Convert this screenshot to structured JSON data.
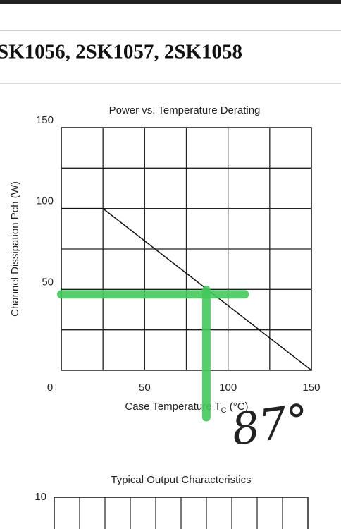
{
  "header": {
    "title": "SK1056, 2SK1057, 2SK1058"
  },
  "chart_data": [
    {
      "type": "line",
      "title": "Power vs. Temperature Derating",
      "x_label": {
        "text": "Case Temperature  T",
        "sub": "C",
        "unit": " (°C)"
      },
      "y_label": "Channel Dissipation  Pch (W)",
      "xlim": [
        0,
        150
      ],
      "xticks": [
        0,
        50,
        100,
        150
      ],
      "x_minor_ticks": [
        25,
        75,
        125
      ],
      "ylim": [
        0,
        150
      ],
      "yticks": [
        50,
        100,
        150
      ],
      "y_minor_ticks": [
        25,
        75,
        125
      ],
      "grid": true,
      "x": [
        0,
        25,
        150
      ],
      "series": [
        {
          "name": "Pch",
          "color": "#111111",
          "values": [
            100,
            100,
            0
          ]
        }
      ],
      "marker": {
        "x": 87,
        "y": 47,
        "x_end": 110,
        "y_end": -29,
        "label": "87°",
        "color": "#44c95c"
      }
    },
    {
      "type": "line",
      "title": "Typical Output Characteristics",
      "yticks": [
        10
      ],
      "grid": true
    }
  ]
}
